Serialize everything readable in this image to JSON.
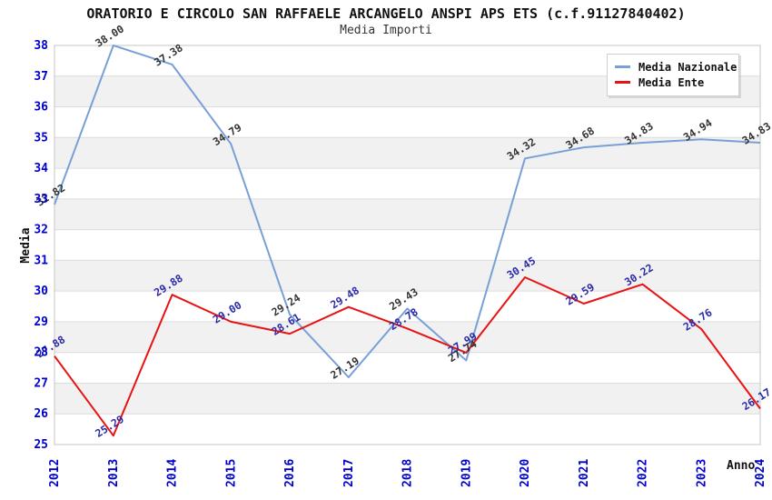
{
  "header": {
    "title": "ORATORIO E CIRCOLO SAN RAFFAELE ARCANGELO ANSPI APS ETS (c.f.91127840402)",
    "subtitle": "Media Importi"
  },
  "axes": {
    "y_title": "Media",
    "x_title": "Anno"
  },
  "legend": {
    "items": [
      {
        "label": "Media Nazionale",
        "color": "#78a0d7"
      },
      {
        "label": "Media Ente",
        "color": "#e81212"
      }
    ]
  },
  "colors": {
    "tick_label": "#0000cc",
    "grid_line": "#dcdcdc",
    "band_fill": "#f1f1f1",
    "plot_border": "#c6c6c6",
    "blue_series": "#78a0d7",
    "red_series": "#e81212",
    "blue_series_value_label": "#333333",
    "red_series_value_label": "#2a2aa8"
  },
  "chart_data": {
    "type": "line",
    "title": "ORATORIO E CIRCOLO SAN RAFFAELE ARCANGELO ANSPI APS ETS (c.f.91127840402)",
    "subtitle": "Media Importi",
    "xlabel": "Anno",
    "ylabel": "Media",
    "ylim": [
      25,
      38
    ],
    "ytick_step": 1,
    "grid": "horizontal-gridlines-with-alternating-gray-bands",
    "legend_position": "top-right",
    "x": [
      "2012",
      "2013",
      "2014",
      "2015",
      "2016",
      "2017",
      "2018",
      "2019",
      "2020",
      "2021",
      "2022",
      "2023",
      "2024"
    ],
    "series": [
      {
        "name": "Media Nazionale",
        "color": "#78a0d7",
        "label_color": "#333333",
        "values": [
          32.82,
          38.0,
          37.38,
          34.79,
          29.24,
          27.19,
          29.43,
          27.74,
          34.32,
          34.68,
          34.83,
          34.94,
          34.83
        ]
      },
      {
        "name": "Media Ente",
        "color": "#e81212",
        "label_color": "#2a2aa8",
        "values": [
          27.88,
          25.29,
          29.88,
          29.0,
          28.61,
          29.48,
          28.78,
          27.99,
          30.45,
          29.59,
          30.22,
          28.76,
          26.17
        ]
      }
    ]
  }
}
